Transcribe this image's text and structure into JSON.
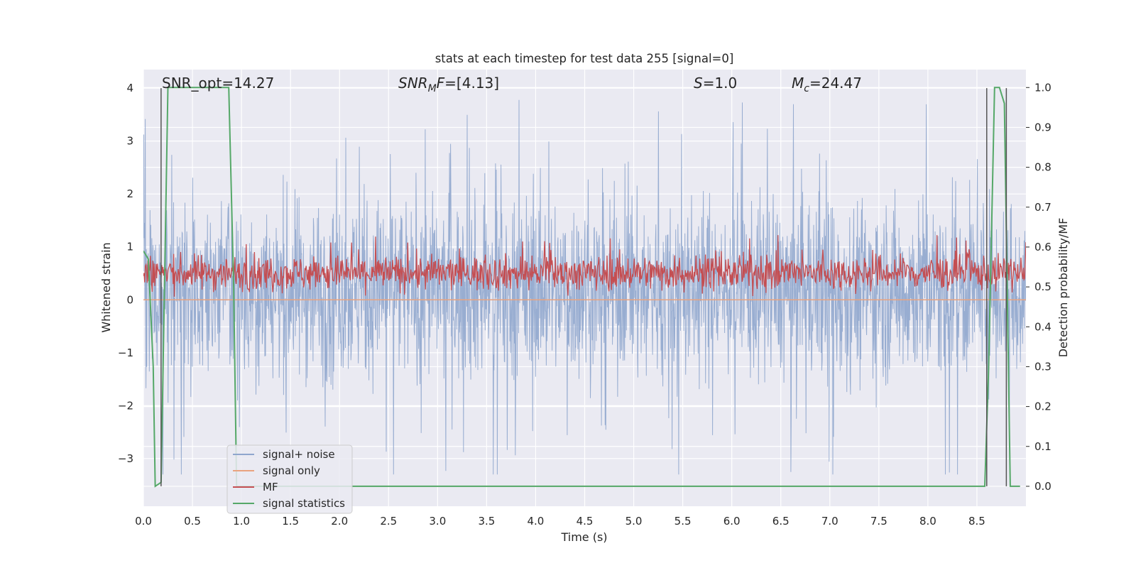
{
  "chart_data": {
    "type": "line",
    "title": "stats at each timestep for test data 255 [signal=0]",
    "xlabel": "Time (s)",
    "ylabel": "Whitened strain",
    "ylabel_right": "Detection probability/MF",
    "xlim": [
      0.0,
      9.0
    ],
    "ylim": [
      -3.9,
      4.35
    ],
    "ylim_right": [
      -0.05,
      1.045
    ],
    "x_ticks": [
      "0.0",
      "0.5",
      "1.0",
      "1.5",
      "2.0",
      "2.5",
      "3.0",
      "3.5",
      "4.0",
      "4.5",
      "5.0",
      "5.5",
      "6.0",
      "6.5",
      "7.0",
      "7.5",
      "8.0",
      "8.5"
    ],
    "y_ticks": [
      "4",
      "3",
      "2",
      "1",
      "0",
      "−1",
      "−2",
      "−3"
    ],
    "y_ticks_right": [
      "1.0",
      "0.9",
      "0.8",
      "0.7",
      "0.6",
      "0.5",
      "0.4",
      "0.3",
      "0.2",
      "0.1",
      "0.0"
    ],
    "grid": true,
    "legend_position": "lower-left",
    "annotations": {
      "snr_opt": "SNR_opt=14.27",
      "snr_mf_italic": "SNR",
      "snr_mf_sub": "M",
      "snr_mf_italic2": "F",
      "snr_mf_rest": "=[4.13]",
      "s_italic": "S",
      "s_rest": "=1.0",
      "mc_italic": "M",
      "mc_sub": "c",
      "mc_rest": "=24.47"
    },
    "series": [
      {
        "name": "signal+ noise",
        "color": "#8fa6cd",
        "axis": "left",
        "description_range": [
          -3.3,
          4.0
        ],
        "typical_band": [
          -1.3,
          1.7
        ]
      },
      {
        "name": "signal only",
        "color": "#e9a37f",
        "axis": "left",
        "values_constant": 0.0
      },
      {
        "name": "MF",
        "color": "#c44e52",
        "axis": "right",
        "typical_band": [
          0.47,
          0.61
        ]
      },
      {
        "name": "signal statistics",
        "color": "#55a868",
        "axis": "right",
        "x": [
          0.0,
          0.05,
          0.1,
          0.12,
          0.18,
          0.25,
          0.87,
          0.92,
          0.95,
          8.52,
          8.58,
          8.62,
          8.68,
          8.73,
          8.78,
          8.84,
          8.88,
          8.94
        ],
        "y": [
          0.59,
          0.57,
          0.3,
          0.0,
          0.01,
          1.0,
          1.0,
          0.5,
          0.0,
          0.0,
          0.0,
          0.3,
          1.0,
          1.0,
          0.96,
          0.0,
          0.0,
          0.0
        ]
      }
    ],
    "vertical_markers": [
      0.18,
      8.6,
      8.8
    ]
  }
}
